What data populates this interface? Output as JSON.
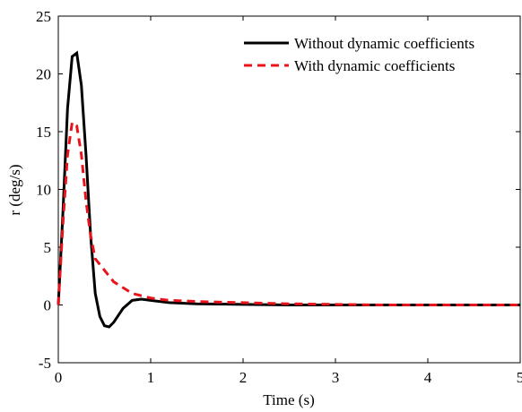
{
  "chart_data": {
    "type": "line",
    "x_label": "Time (s)",
    "y_label": "r (deg/s)",
    "x": [
      0,
      0.05,
      0.1,
      0.15,
      0.2,
      0.25,
      0.3,
      0.35,
      0.4,
      0.45,
      0.5,
      0.55,
      0.6,
      0.7,
      0.8,
      0.9,
      1.0,
      1.2,
      1.5,
      2,
      2.5,
      3,
      3.5,
      4,
      4.5,
      5
    ],
    "series": [
      {
        "name": "Without dynamic coefficients",
        "color": "#000000",
        "dash": "solid",
        "values": [
          0,
          8,
          17,
          21.5,
          21.8,
          19,
          13,
          6,
          1,
          -1,
          -1.8,
          -1.9,
          -1.5,
          -0.3,
          0.4,
          0.5,
          0.4,
          0.2,
          0.1,
          0.05,
          0,
          0,
          0,
          0,
          0,
          0
        ]
      },
      {
        "name": "With dynamic coefficients",
        "color": "#e8141b",
        "dash": "dashed",
        "values": [
          0,
          7,
          13,
          15.8,
          15.5,
          13,
          9,
          6,
          4,
          3.5,
          3,
          2.5,
          2,
          1.5,
          1,
          0.8,
          0.6,
          0.4,
          0.3,
          0.2,
          0.1,
          0.05,
          0,
          0,
          0,
          0
        ]
      }
    ],
    "xlim": [
      0,
      5
    ],
    "xticks": [
      0,
      1,
      2,
      3,
      4,
      5
    ],
    "ylim": [
      -5,
      25
    ],
    "yticks": [
      -5,
      0,
      5,
      10,
      15,
      20,
      25
    ],
    "grid": false,
    "legend": "upper right"
  }
}
